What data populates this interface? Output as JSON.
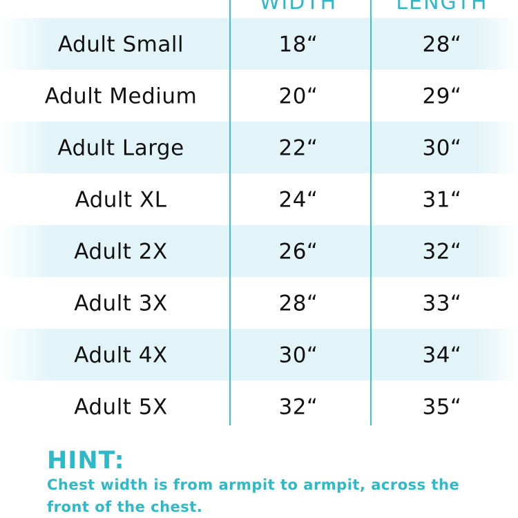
{
  "table": {
    "columns": [
      "WIDTH",
      "LENGTH"
    ],
    "rows": [
      [
        "Adult Small",
        "18“",
        "28“"
      ],
      [
        "Adult Medium",
        "20“",
        "29“"
      ],
      [
        "Adult Large",
        "22“",
        "30“"
      ],
      [
        "Adult XL",
        "24“",
        "31“"
      ],
      [
        "Adult 2X",
        "26“",
        "32“"
      ],
      [
        "Adult 3X",
        "28“",
        "33“"
      ],
      [
        "Adult 4X",
        "30“",
        "34“"
      ],
      [
        "Adult 5X",
        "32“",
        "35“"
      ]
    ]
  },
  "hint": {
    "title": "HINT:",
    "lines": [
      "Chest width is from armpit to armpit, across the",
      "front of the chest."
    ]
  }
}
